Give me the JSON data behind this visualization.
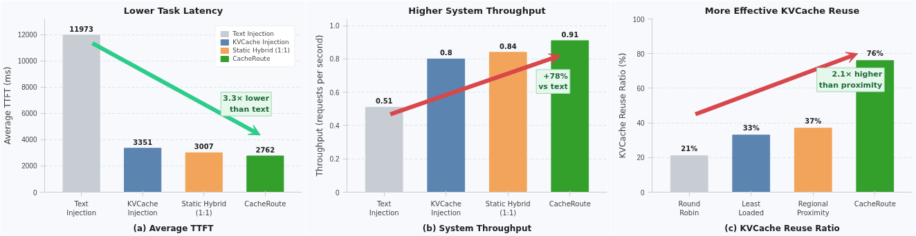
{
  "chart_data": [
    {
      "type": "bar",
      "title": "Lower Task Latency",
      "ylabel": "Average TTFT (ms)",
      "categories": [
        "Text\nInjection",
        "KVCache\nInjection",
        "Static Hybrid\n(1:1)",
        "CacheRoute"
      ],
      "series": [
        {
          "name": "Text Injection",
          "color": "#c8cdd4",
          "values": [
            11973,
            null,
            null,
            null
          ]
        },
        {
          "name": "KVCache Injection",
          "color": "#5b84b1",
          "values": [
            null,
            3351,
            null,
            null
          ]
        },
        {
          "name": "Static Hybrid (1:1)",
          "color": "#f2a55a",
          "values": [
            null,
            null,
            3007,
            null
          ]
        },
        {
          "name": "CacheRoute",
          "color": "#33a02c",
          "values": [
            null,
            null,
            null,
            2762
          ]
        }
      ],
      "ylim": [
        0,
        13200
      ],
      "yticks": [
        0,
        2000,
        4000,
        6000,
        8000,
        10000,
        12000
      ],
      "grid": "y",
      "legend": "top right",
      "data_labels": true,
      "annotations": [
        "3.3× lower\nthan text",
        "(a) Average TTFT"
      ]
    },
    {
      "type": "bar",
      "title": "Higher System Throughput",
      "ylabel": "Throughput (requests per second)",
      "categories": [
        "Text\nInjection",
        "KVCache\nInjection",
        "Static Hybrid\n(1:1)",
        "CacheRoute"
      ],
      "values": [
        0.51,
        0.8,
        0.84,
        0.91
      ],
      "colors": [
        "#c8cdd4",
        "#5b84b1",
        "#f2a55a",
        "#33a02c"
      ],
      "ylim": [
        0,
        1.04
      ],
      "yticks": [
        0,
        0.2,
        0.4,
        0.6,
        0.8,
        {
          "value": 1,
          "label": "1.0"
        }
      ],
      "grid": "y",
      "data_labels": true,
      "annotations": [
        "+78%\nvs text",
        "(b) System Throughput"
      ]
    },
    {
      "type": "bar",
      "title": "More Effective KVCache Reuse",
      "ylabel": "KVCache Reuse Ratio (%)",
      "categories": [
        "Round\nRobin",
        "Least\nLoaded",
        "Regional\nProximity",
        "CacheRoute"
      ],
      "values": [
        21,
        33,
        37,
        76
      ],
      "value_labels": [
        "21%",
        "33%",
        "37%",
        "76%"
      ],
      "colors": [
        "#c8cdd4",
        "#5b84b1",
        "#f2a55a",
        "#33a02c"
      ],
      "ylim": [
        0,
        100
      ],
      "yticks": [
        0,
        20,
        40,
        60,
        80,
        100
      ],
      "grid": "y",
      "annotations": [
        "2.1× higher\nthan proximity",
        "(c) KVCache Reuse Ratio"
      ]
    }
  ]
}
